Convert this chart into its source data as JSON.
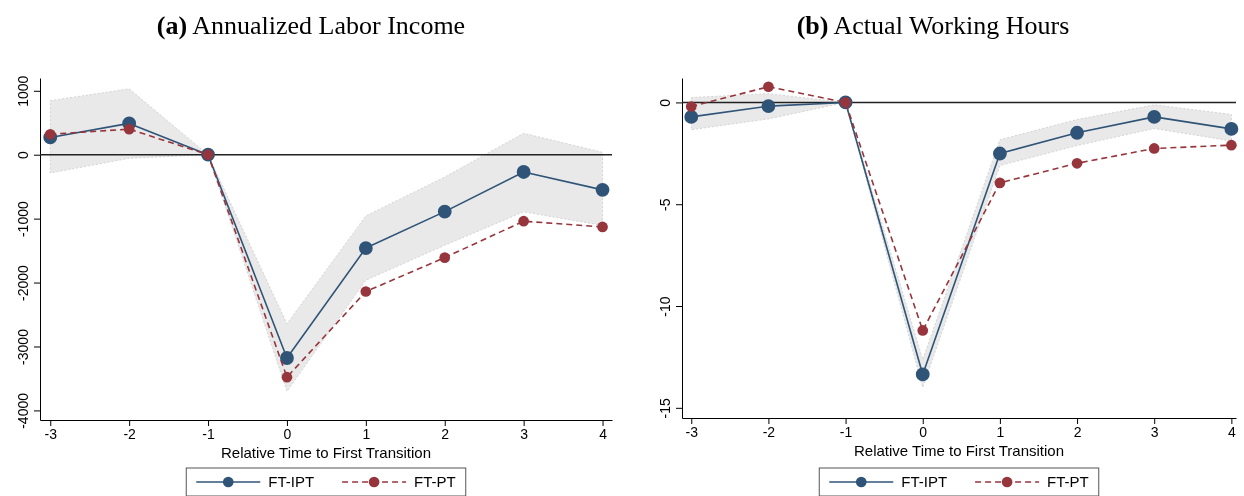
{
  "chart_data": [
    {
      "type": "line",
      "title": "(a) Annualized Labor Income",
      "xlabel": "Relative Time to First Transition",
      "x": [
        -3,
        -2,
        -1,
        0,
        1,
        2,
        3,
        4
      ],
      "xlim": [
        -3.13,
        4.12
      ],
      "xticks": [
        -3,
        -2,
        -1,
        0,
        1,
        2,
        3,
        4
      ],
      "ylim": [
        -4150,
        1200
      ],
      "yticks": [
        -4000,
        -3000,
        -2000,
        -1000,
        0,
        1000
      ],
      "marker": "circle",
      "legend": "bottom",
      "grid": false,
      "ref_lines": [
        {
          "axis": "y",
          "value": 0,
          "color": "#222222"
        }
      ],
      "series": [
        {
          "name": "FT-IPT",
          "color": "#2f5477",
          "line_style": "solid",
          "values": [
            270,
            490,
            0,
            -3180,
            -1460,
            -890,
            -270,
            -550
          ],
          "lower": [
            -286,
            -56,
            0,
            -3702,
            -1963,
            -1416,
            -894,
            -1106
          ],
          "upper": [
            845,
            1031,
            0,
            -2646,
            -957,
            -348,
            335,
            37
          ]
        },
        {
          "name": "FT-PT",
          "color": "#96353c",
          "line_style": "dashed",
          "values": [
            320,
            400,
            0,
            -3480,
            -2140,
            -1610,
            -1040,
            -1130
          ]
        }
      ]
    },
    {
      "type": "line",
      "title": "(b) Actual Working Hours",
      "xlabel": "Relative Time to First Transition",
      "x": [
        -3,
        -2,
        -1,
        0,
        1,
        2,
        3,
        4
      ],
      "xlim": [
        -3.12,
        4.06
      ],
      "xticks": [
        -3,
        -2,
        -1,
        0,
        1,
        2,
        3,
        4
      ],
      "ylim": [
        -15.5,
        1.2
      ],
      "yticks": [
        -15,
        -10,
        -5,
        0
      ],
      "marker": "circle",
      "legend": "bottom",
      "grid": false,
      "ref_lines": [
        {
          "axis": "y",
          "value": 0,
          "color": "#222222"
        }
      ],
      "series": [
        {
          "name": "FT-IPT",
          "color": "#2f5477",
          "line_style": "solid",
          "values": [
            -0.71,
            -0.18,
            0,
            -13.36,
            -2.51,
            -1.49,
            -0.71,
            -1.3
          ],
          "lower": [
            -1.34,
            -0.81,
            0,
            -14.0,
            -3.1,
            -2.12,
            -1.28,
            -1.89
          ],
          "upper": [
            0.24,
            0.43,
            0,
            -12.63,
            -1.83,
            -0.84,
            -0.12,
            -0.59
          ]
        },
        {
          "name": "FT-PT",
          "color": "#96353c",
          "line_style": "dashed",
          "values": [
            -0.2,
            0.77,
            0,
            -11.2,
            -3.95,
            -2.99,
            -2.26,
            -2.1
          ]
        }
      ]
    }
  ]
}
